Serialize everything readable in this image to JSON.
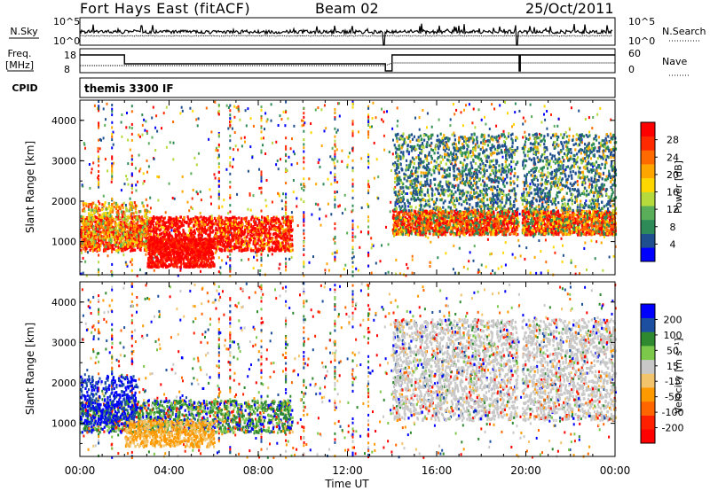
{
  "header": {
    "title": "Fort Hays East (fitACF)",
    "beam": "Beam 02",
    "date": "25/Oct/2011"
  },
  "panels": {
    "nsky_label": "N.Sky",
    "nsky_ticks": [
      "10^5",
      "10^0"
    ],
    "nsearch_label": "N.Search",
    "nsearch_ticks": [
      "10^5",
      "10^0"
    ],
    "freq_label_1": "Freq.",
    "freq_label_2": "[MHz]",
    "freq_ticks": [
      "18",
      "8"
    ],
    "nave_label": "Nave",
    "nave_ticks": [
      "60",
      "0"
    ],
    "cpid_label": "CPID",
    "cpid_value": "themis 3300 IF"
  },
  "colors": {
    "power": [
      "#0000ff",
      "#1f4f8f",
      "#2e8b57",
      "#5aae5a",
      "#b6d93c",
      "#ffd700",
      "#ffa500",
      "#ff6a00",
      "#ff2a00",
      "#ff0000"
    ],
    "velocity": [
      "#0000ff",
      "#1c4fa0",
      "#2f8a2f",
      "#7cc84a",
      "#c8c8c8",
      "#f2c46b",
      "#ff9900",
      "#ff6600",
      "#ff2000",
      "#ff0000"
    ],
    "scatter_gray": "#c8c8c8"
  },
  "chart_data": [
    {
      "type": "heatmap",
      "title": "Fort Hays East (fitACF)",
      "xlabel": "Time UT",
      "ylabel": "Slant Range [km]",
      "xticks": [
        "00:00",
        "04:00",
        "08:00",
        "12:00",
        "16:00",
        "20:00",
        "00:00"
      ],
      "yticks": [
        "1000",
        "2000",
        "3000",
        "4000"
      ],
      "ylim": [
        180,
        4500
      ],
      "colorbar": {
        "label": "Power [dB]",
        "ticks": [
          "4",
          "8",
          "12",
          "16",
          "20",
          "24",
          "28"
        ],
        "range": [
          0,
          30
        ]
      },
      "features": [
        {
          "t": [
            0,
            9
          ],
          "range_km": [
            800,
            1700
          ],
          "power_db": 28
        },
        {
          "t": [
            14,
            24
          ],
          "range_km": [
            1300,
            1700
          ],
          "power_db": 24
        },
        {
          "t": [
            14,
            24
          ],
          "range_km": [
            1800,
            3600
          ],
          "power_db": 8
        }
      ]
    },
    {
      "type": "heatmap",
      "title": "Fort Hays East (fitACF)",
      "xlabel": "Time UT",
      "ylabel": "Slant Range [km]",
      "xticks": [
        "00:00",
        "04:00",
        "08:00",
        "12:00",
        "16:00",
        "20:00",
        "00:00"
      ],
      "yticks": [
        "1000",
        "2000",
        "3000",
        "4000"
      ],
      "ylim": [
        180,
        4500
      ],
      "colorbar": {
        "label": "Velocity [m s⁻¹]",
        "ticks": [
          "200",
          "100",
          "50",
          "15",
          "-15",
          "-50",
          "-100",
          "-200"
        ],
        "range": [
          -250,
          250
        ]
      },
      "features": [
        {
          "t": [
            14,
            24
          ],
          "range_km": [
            1100,
            3600
          ],
          "velocity_ms": 0
        },
        {
          "t": [
            0,
            2.5
          ],
          "range_km": [
            900,
            2100
          ],
          "velocity_ms": 200
        },
        {
          "t": [
            2,
            6
          ],
          "range_km": [
            500,
            1200
          ],
          "velocity_ms": -50
        }
      ]
    }
  ]
}
